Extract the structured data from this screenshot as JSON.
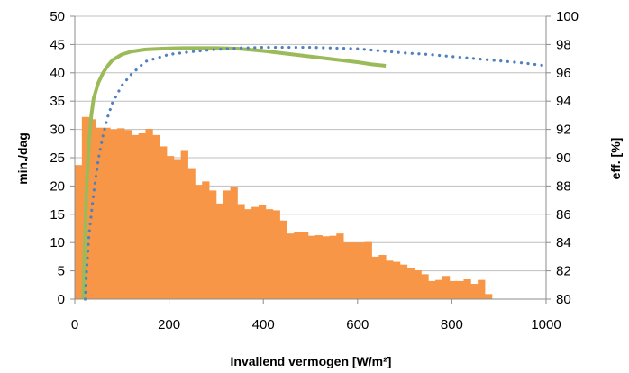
{
  "chart_data": {
    "type": "bar",
    "xlabel": "Invallend vermogen [W/m²]",
    "ylabel": "min./dag",
    "y2label": "eff. [%]",
    "xlim": [
      0,
      1000
    ],
    "ylim": [
      0,
      50
    ],
    "y2lim": [
      80,
      100
    ],
    "x_ticks": [
      0,
      200,
      400,
      600,
      800,
      1000
    ],
    "y_ticks": [
      0,
      5,
      10,
      15,
      20,
      25,
      30,
      35,
      40,
      45,
      50
    ],
    "y2_ticks": [
      80,
      82,
      84,
      86,
      88,
      90,
      92,
      94,
      96,
      98,
      100
    ],
    "grid": true,
    "bin_width": 15,
    "histogram": {
      "color": "#f79646",
      "x_start": [
        0,
        15,
        30,
        45,
        60,
        75,
        90,
        105,
        120,
        135,
        150,
        165,
        180,
        195,
        210,
        225,
        240,
        255,
        270,
        285,
        300,
        315,
        330,
        345,
        360,
        375,
        390,
        405,
        420,
        435,
        450,
        465,
        480,
        495,
        510,
        525,
        540,
        555,
        570,
        585,
        600,
        615,
        630,
        645,
        660,
        675,
        690,
        705,
        720,
        735,
        750,
        765,
        780,
        795,
        810,
        825,
        840,
        855,
        870,
        885
      ],
      "values": [
        23.7,
        32.2,
        31.8,
        30.3,
        30.3,
        30.0,
        30.2,
        29.9,
        29.0,
        29.3,
        30.1,
        29.0,
        27.0,
        25.3,
        24.6,
        26.2,
        23.0,
        20.2,
        20.8,
        19.2,
        16.9,
        19.2,
        19.9,
        16.8,
        15.9,
        16.3,
        16.7,
        15.9,
        15.7,
        13.9,
        11.6,
        11.9,
        11.9,
        11.2,
        11.3,
        11.1,
        11.2,
        11.6,
        10.0,
        10.0,
        10.0,
        10.1,
        7.5,
        7.8,
        6.8,
        6.6,
        6.1,
        5.5,
        5.1,
        4.4,
        3.2,
        3.4,
        4.1,
        3.2,
        3.2,
        3.5,
        2.7,
        3.4,
        0.9,
        0
      ]
    },
    "series": [
      {
        "style": "solid",
        "color": "#9bbb59",
        "axis": "right",
        "x": [
          18,
          20,
          23,
          26,
          30,
          35,
          40,
          50,
          60,
          70,
          80,
          100,
          120,
          150,
          180,
          200,
          230,
          260,
          280,
          300,
          350,
          400,
          450,
          500,
          550,
          600,
          630,
          660
        ],
        "y": [
          80.0,
          82.5,
          86.0,
          88.5,
          91.0,
          93.0,
          94.2,
          95.3,
          96.0,
          96.5,
          96.9,
          97.3,
          97.5,
          97.65,
          97.7,
          97.72,
          97.75,
          97.75,
          97.75,
          97.75,
          97.7,
          97.55,
          97.35,
          97.15,
          96.95,
          96.75,
          96.6,
          96.5
        ]
      },
      {
        "style": "dotted",
        "color": "#4f81bd",
        "axis": "right",
        "x": [
          22,
          25,
          30,
          40,
          50,
          60,
          70,
          80,
          100,
          120,
          150,
          200,
          250,
          300,
          350,
          400,
          450,
          500,
          550,
          600,
          650,
          700,
          750,
          800,
          850,
          900,
          950,
          1000
        ],
        "y": [
          80.0,
          82.0,
          84.5,
          87.5,
          89.9,
          91.6,
          92.9,
          93.9,
          95.1,
          95.9,
          96.8,
          97.3,
          97.5,
          97.65,
          97.75,
          97.8,
          97.8,
          97.8,
          97.75,
          97.7,
          97.55,
          97.4,
          97.3,
          97.15,
          97.0,
          96.85,
          96.7,
          96.5
        ]
      }
    ]
  }
}
